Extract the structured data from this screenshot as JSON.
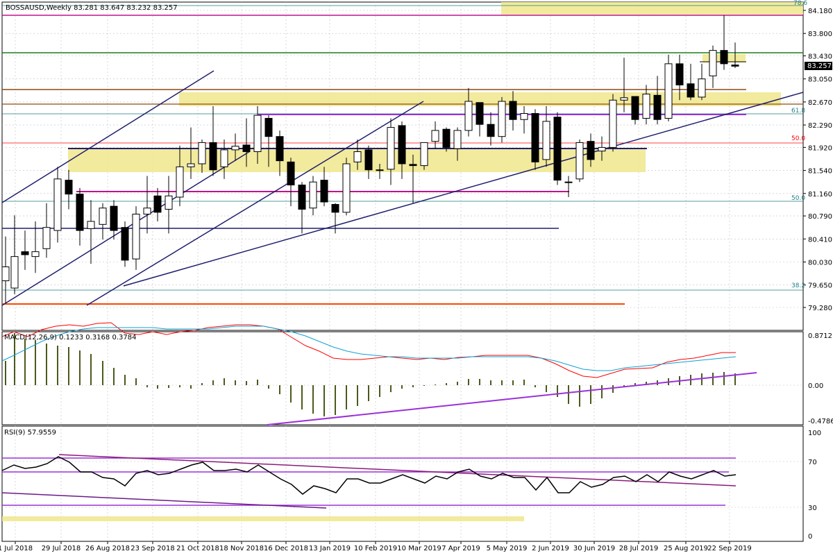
{
  "header": {
    "text": "BOSSAUSD,Weekly  83.281 83.647 83.232 83.257"
  },
  "price_axis": {
    "ticks": [
      "84.180",
      "83.800",
      "83.430",
      "83.050",
      "82.670",
      "82.290",
      "81.920",
      "81.540",
      "81.160",
      "80.790",
      "80.410",
      "80.030",
      "79.650",
      "79.280"
    ],
    "current_price": "83.257"
  },
  "fib_labels": {
    "top": "78.6",
    "level_618": "61.8",
    "level_500": "50.0",
    "level_500_lower": "50.0",
    "level_382": "38.2"
  },
  "macd": {
    "label": "MACD(12,26,9) 0.1233 0.3168 0.3784",
    "ticks": [
      "0.8712",
      "0.00",
      "-0.4786"
    ]
  },
  "rsi": {
    "label": "RSI(9) 57.9559",
    "ticks": [
      "100",
      "70",
      "30",
      "0"
    ]
  },
  "date_axis": {
    "labels": [
      "1 Jul 2018",
      "29 Jul 2018",
      "26 Aug 2018",
      "23 Sep 2018",
      "21 Oct 2018",
      "18 Nov 2018",
      "16 Dec 2018",
      "13 Jan 2019",
      "10 Feb 2019",
      "10 Mar 2019",
      "7 Apr 2019",
      "5 May 2019",
      "2 Jun 2019",
      "30 Jun 2019",
      "28 Jul 2019",
      "25 Aug 2019",
      "22 Sep 2019"
    ]
  },
  "chart_data": {
    "type": "candlestick",
    "title": "BOSSAUSD,Weekly",
    "ohlc_label": "83.281 83.647 83.232 83.257",
    "price_range": [
      "79.280",
      "84.180"
    ],
    "date_range": [
      "1 Jul 2018",
      "22 Sep 2019"
    ],
    "indicators": [
      "MACD(12,26,9)",
      "RSI(9)"
    ],
    "macd_readout": [
      "0.1233",
      "0.3168",
      "0.3784"
    ],
    "rsi_readout": "57.9559",
    "grid": true
  },
  "colors": {
    "background": "#ffffff",
    "grid": "#c0c0c0",
    "candle_bull": "#ffffff",
    "candle_bear": "#000000",
    "zone_fill": "#f0e68c",
    "trend_line": "#1f1f6e",
    "magenta_line": "#c0138c",
    "purple_line": "#9b30d9",
    "green_line": "#1a7f1a",
    "brown_line": "#8b4a0f",
    "orange_line": "#ff4500",
    "macd_signal": "#ff0000",
    "macd_main": "#10a0d0",
    "macd_hist": "#4a5a1a",
    "rsi_line": "#000000",
    "fib_text": "#20808a",
    "fib_red": "#ff0000"
  }
}
